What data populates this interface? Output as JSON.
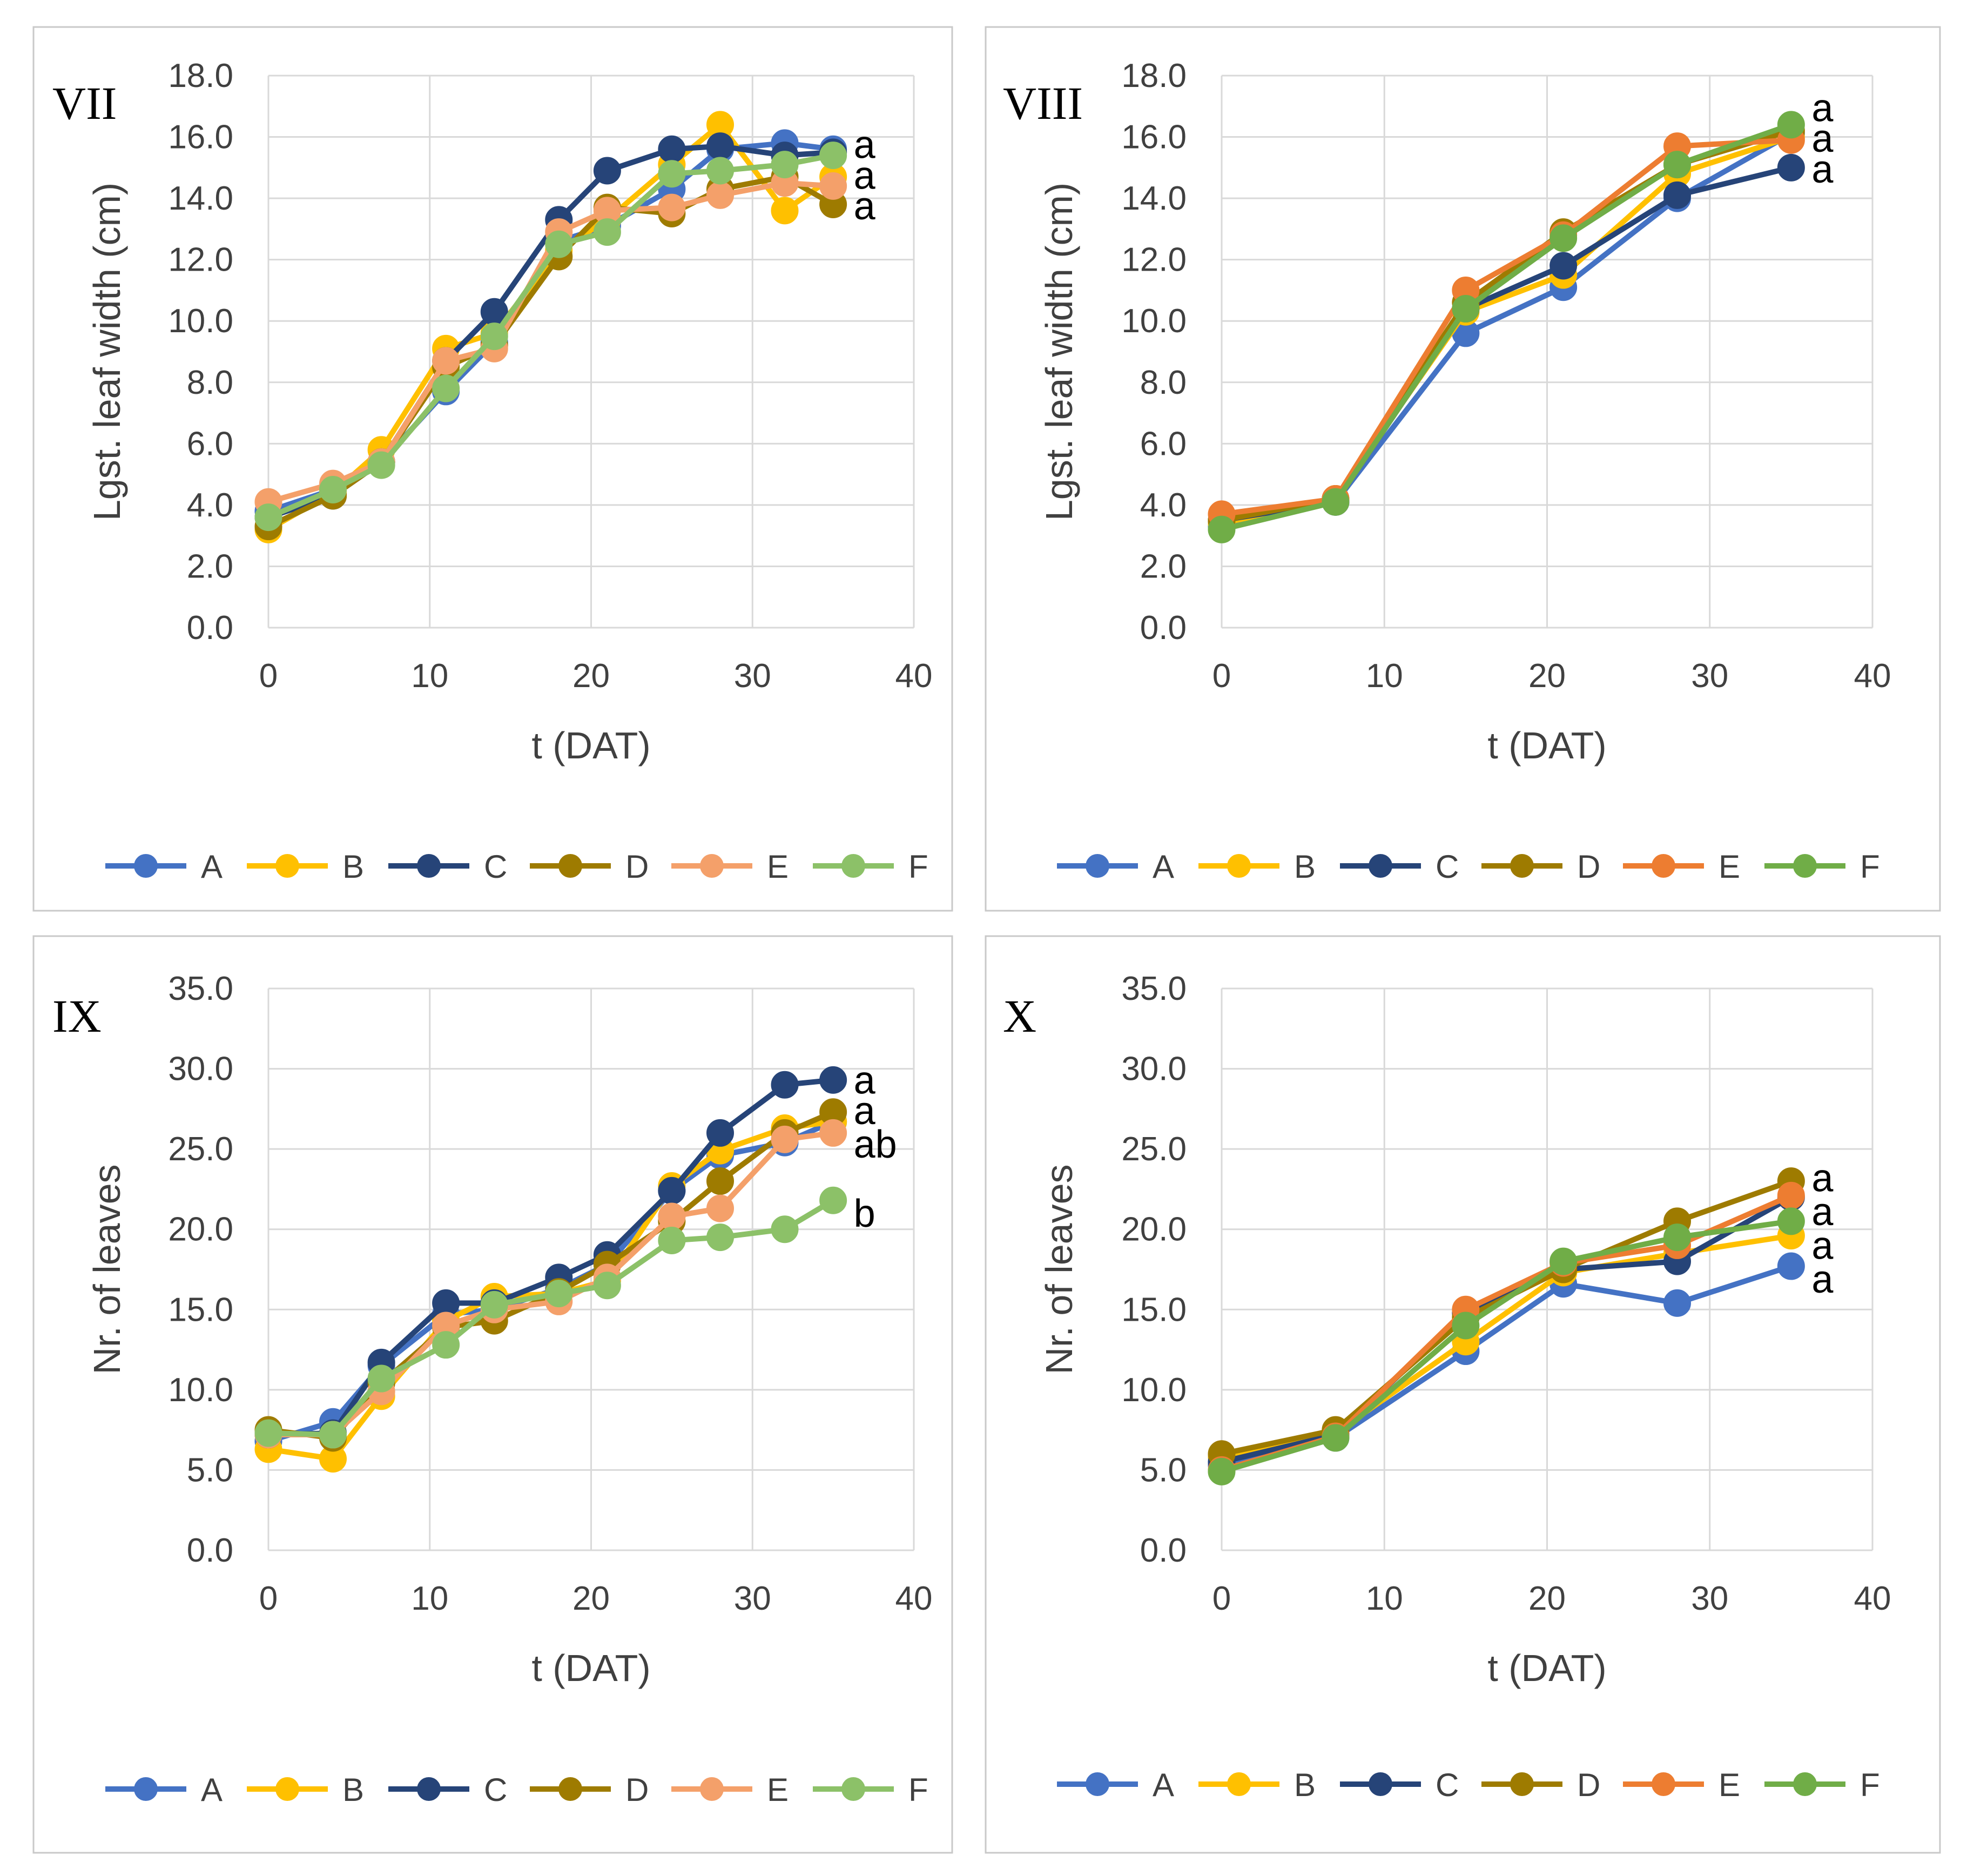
{
  "figure": {
    "background": "#ffffff",
    "border_color": "#c9c9c9"
  },
  "series_styles": {
    "set1": {
      "A": "#4472c4",
      "B": "#ffc000",
      "C": "#264478",
      "D": "#9e7b00",
      "E": "#f4a06a",
      "F": "#8cc168"
    },
    "set2": {
      "A": "#4472c4",
      "B": "#ffc000",
      "C": "#264478",
      "D": "#9e7b00",
      "E": "#ed7d31",
      "F": "#70ad47"
    }
  },
  "chart_data": [
    {
      "id": "VII",
      "type": "line",
      "panel_label": "VII",
      "xlabel": "t (DAT)",
      "ylabel": "Lgst. leaf width (cm)",
      "xlim": [
        0,
        40
      ],
      "ylim": [
        0,
        18
      ],
      "xticks": [
        0,
        10,
        20,
        30,
        40
      ],
      "yticks": [
        0,
        2,
        4,
        6,
        8,
        10,
        12,
        14,
        16,
        18
      ],
      "ytick_labels": [
        "0.0",
        "2.0",
        "4.0",
        "6.0",
        "8.0",
        "10.0",
        "12.0",
        "14.0",
        "16.0",
        "18.0"
      ],
      "grid": true,
      "legend": "bottom",
      "style_set": "set1",
      "x": [
        0,
        4,
        7,
        11,
        14,
        18,
        21,
        25,
        28,
        32,
        35
      ],
      "series": [
        {
          "name": "A",
          "values": [
            3.8,
            4.5,
            5.4,
            7.7,
            9.3,
            12.6,
            13.1,
            14.3,
            15.6,
            15.8,
            15.6
          ]
        },
        {
          "name": "B",
          "values": [
            3.2,
            4.4,
            5.8,
            9.1,
            9.6,
            12.3,
            13.3,
            15.1,
            16.4,
            13.6,
            14.7
          ]
        },
        {
          "name": "C",
          "values": [
            3.6,
            4.3,
            5.4,
            8.7,
            10.3,
            13.3,
            14.9,
            15.6,
            15.7,
            15.4,
            15.5
          ]
        },
        {
          "name": "D",
          "values": [
            3.3,
            4.3,
            5.4,
            8.5,
            9.2,
            12.1,
            13.7,
            13.5,
            14.3,
            14.7,
            13.8
          ]
        },
        {
          "name": "E",
          "values": [
            4.1,
            4.7,
            5.4,
            8.7,
            9.1,
            12.9,
            13.6,
            13.7,
            14.1,
            14.5,
            14.4
          ]
        },
        {
          "name": "F",
          "values": [
            3.6,
            4.5,
            5.3,
            7.8,
            9.5,
            12.5,
            12.9,
            14.8,
            14.9,
            15.1,
            15.4
          ]
        }
      ],
      "annotations": [
        {
          "text": "a",
          "y": 15.7
        },
        {
          "text": "a",
          "y": 14.7
        },
        {
          "text": "a",
          "y": 13.7
        }
      ]
    },
    {
      "id": "VIII",
      "type": "line",
      "panel_label": "VIII",
      "xlabel": "t (DAT)",
      "ylabel": "Lgst. leaf width (cm)",
      "xlim": [
        0,
        40
      ],
      "ylim": [
        0,
        18
      ],
      "xticks": [
        0,
        10,
        20,
        30,
        40
      ],
      "yticks": [
        0,
        2,
        4,
        6,
        8,
        10,
        12,
        14,
        16,
        18
      ],
      "ytick_labels": [
        "0.0",
        "2.0",
        "4.0",
        "6.0",
        "8.0",
        "10.0",
        "12.0",
        "14.0",
        "16.0",
        "18.0"
      ],
      "grid": true,
      "legend": "bottom",
      "style_set": "set2",
      "x": [
        0,
        7,
        15,
        21,
        28,
        35
      ],
      "series": [
        {
          "name": "A",
          "values": [
            3.3,
            4.1,
            9.6,
            11.1,
            14.0,
            16.1
          ]
        },
        {
          "name": "B",
          "values": [
            3.4,
            4.2,
            10.3,
            11.5,
            14.8,
            16.0
          ]
        },
        {
          "name": "C",
          "values": [
            3.5,
            4.1,
            10.4,
            11.8,
            14.1,
            15.0
          ]
        },
        {
          "name": "D",
          "values": [
            3.5,
            4.2,
            10.6,
            12.9,
            15.1,
            16.2
          ]
        },
        {
          "name": "E",
          "values": [
            3.7,
            4.2,
            11.0,
            12.8,
            15.7,
            15.9
          ]
        },
        {
          "name": "F",
          "values": [
            3.2,
            4.1,
            10.4,
            12.7,
            15.1,
            16.4
          ]
        }
      ],
      "annotations": [
        {
          "text": "a",
          "y": 16.9
        },
        {
          "text": "a",
          "y": 15.9
        },
        {
          "text": "a",
          "y": 14.9
        }
      ]
    },
    {
      "id": "IX",
      "type": "line",
      "panel_label": "IX",
      "xlabel": "t (DAT)",
      "ylabel": "Nr. of leaves",
      "xlim": [
        0,
        40
      ],
      "ylim": [
        0,
        35
      ],
      "xticks": [
        0,
        10,
        20,
        30,
        40
      ],
      "yticks": [
        0,
        5,
        10,
        15,
        20,
        25,
        30,
        35
      ],
      "ytick_labels": [
        "0.0",
        "5.0",
        "10.0",
        "15.0",
        "20.0",
        "25.0",
        "30.0",
        "35.0"
      ],
      "grid": true,
      "legend": "bottom",
      "style_set": "set1",
      "x": [
        0,
        4,
        7,
        11,
        14,
        18,
        21,
        25,
        28,
        32,
        35
      ],
      "series": [
        {
          "name": "A",
          "values": [
            6.8,
            8.0,
            11.5,
            14.7,
            15.0,
            16.3,
            17.8,
            22.4,
            24.6,
            25.4,
            26.7
          ]
        },
        {
          "name": "B",
          "values": [
            6.3,
            5.7,
            9.6,
            14.3,
            15.8,
            16.0,
            16.8,
            22.7,
            24.9,
            26.3,
            26.7
          ]
        },
        {
          "name": "C",
          "values": [
            7.2,
            7.3,
            11.7,
            15.4,
            15.4,
            17.0,
            18.4,
            22.4,
            26.0,
            29.0,
            29.3
          ]
        },
        {
          "name": "D",
          "values": [
            7.5,
            7.0,
            10.4,
            13.9,
            14.3,
            16.1,
            17.8,
            20.5,
            23.0,
            26.0,
            27.3
          ]
        },
        {
          "name": "E",
          "values": [
            7.2,
            7.2,
            9.9,
            14.0,
            15.0,
            15.5,
            17.0,
            20.8,
            21.3,
            25.6,
            26.0
          ]
        },
        {
          "name": "F",
          "values": [
            7.3,
            7.2,
            10.7,
            12.8,
            15.3,
            16.0,
            16.5,
            19.3,
            19.5,
            20.0,
            21.8
          ]
        }
      ],
      "annotations": [
        {
          "text": "a",
          "y": 29.2
        },
        {
          "text": "a",
          "y": 27.3
        },
        {
          "text": "ab",
          "y": 25.2
        },
        {
          "text": "b",
          "y": 20.9
        }
      ]
    },
    {
      "id": "X",
      "type": "line",
      "panel_label": "X",
      "xlabel": "t (DAT)",
      "ylabel": "Nr. of leaves",
      "xlim": [
        0,
        40
      ],
      "ylim": [
        0,
        35
      ],
      "xticks": [
        0,
        10,
        20,
        30,
        40
      ],
      "yticks": [
        0,
        5,
        10,
        15,
        20,
        25,
        30,
        35
      ],
      "ytick_labels": [
        "0.0",
        "5.0",
        "10.0",
        "15.0",
        "20.0",
        "25.0",
        "30.0",
        "35.0"
      ],
      "grid": true,
      "legend": "bottom",
      "style_set": "set2",
      "x": [
        0,
        7,
        15,
        21,
        28,
        35
      ],
      "series": [
        {
          "name": "A",
          "values": [
            5.3,
            7.0,
            12.4,
            16.6,
            15.4,
            17.7
          ]
        },
        {
          "name": "B",
          "values": [
            5.8,
            7.3,
            13.0,
            17.3,
            18.5,
            19.6
          ]
        },
        {
          "name": "C",
          "values": [
            5.5,
            7.2,
            14.8,
            17.5,
            18.0,
            22.0
          ]
        },
        {
          "name": "D",
          "values": [
            6.0,
            7.5,
            14.5,
            17.5,
            20.5,
            23.0
          ]
        },
        {
          "name": "E",
          "values": [
            5.0,
            7.1,
            15.0,
            17.9,
            19.0,
            22.1
          ]
        },
        {
          "name": "F",
          "values": [
            4.9,
            7.0,
            14.0,
            18.0,
            19.5,
            20.5
          ]
        }
      ],
      "annotations": [
        {
          "text": "a",
          "y": 23.1
        },
        {
          "text": "a",
          "y": 21.0
        },
        {
          "text": "a",
          "y": 18.9
        },
        {
          "text": "a",
          "y": 16.8
        }
      ]
    }
  ]
}
